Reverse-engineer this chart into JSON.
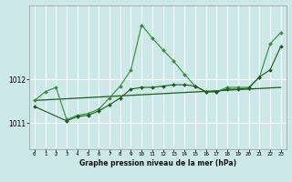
{
  "line_color_dark": "#1a5c1a",
  "line_color_light": "#3a8c3a",
  "bg_color": "#cce8e8",
  "grid_color": "#ffffff",
  "xlabel": "Graphe pression niveau de la mer (hPa)",
  "ylabel_ticks": [
    1011,
    1012
  ],
  "ylim": [
    1010.4,
    1013.7
  ],
  "xlim": [
    -0.5,
    23.5
  ],
  "xticks": [
    0,
    1,
    2,
    3,
    4,
    5,
    6,
    7,
    8,
    9,
    10,
    11,
    12,
    13,
    14,
    15,
    16,
    17,
    18,
    19,
    20,
    21,
    22,
    23
  ],
  "line1_x": [
    0,
    23
  ],
  "line1_y": [
    1011.52,
    1011.82
  ],
  "line2_x": [
    0,
    1,
    2,
    3,
    4,
    5,
    6,
    7,
    8,
    9,
    10,
    11,
    12,
    13,
    14,
    15,
    16,
    17,
    18,
    19,
    20,
    21,
    22,
    23
  ],
  "line2_y": [
    1011.52,
    1011.72,
    1011.82,
    1011.08,
    1011.18,
    1011.22,
    1011.32,
    1011.58,
    1011.85,
    1012.22,
    1013.25,
    1012.95,
    1012.68,
    1012.42,
    1012.12,
    1011.85,
    1011.72,
    1011.72,
    1011.82,
    1011.82,
    1011.82,
    1012.05,
    1012.82,
    1013.08
  ],
  "line3_x": [
    0,
    3,
    4,
    5,
    6,
    7,
    8,
    9,
    10,
    11,
    12,
    13,
    14,
    15,
    16,
    17,
    18,
    19,
    20,
    21,
    22,
    23
  ],
  "line3_y": [
    1011.38,
    1011.05,
    1011.15,
    1011.18,
    1011.28,
    1011.42,
    1011.58,
    1011.78,
    1011.82,
    1011.82,
    1011.85,
    1011.88,
    1011.88,
    1011.85,
    1011.72,
    1011.72,
    1011.78,
    1011.78,
    1011.8,
    1012.06,
    1012.22,
    1012.76
  ]
}
